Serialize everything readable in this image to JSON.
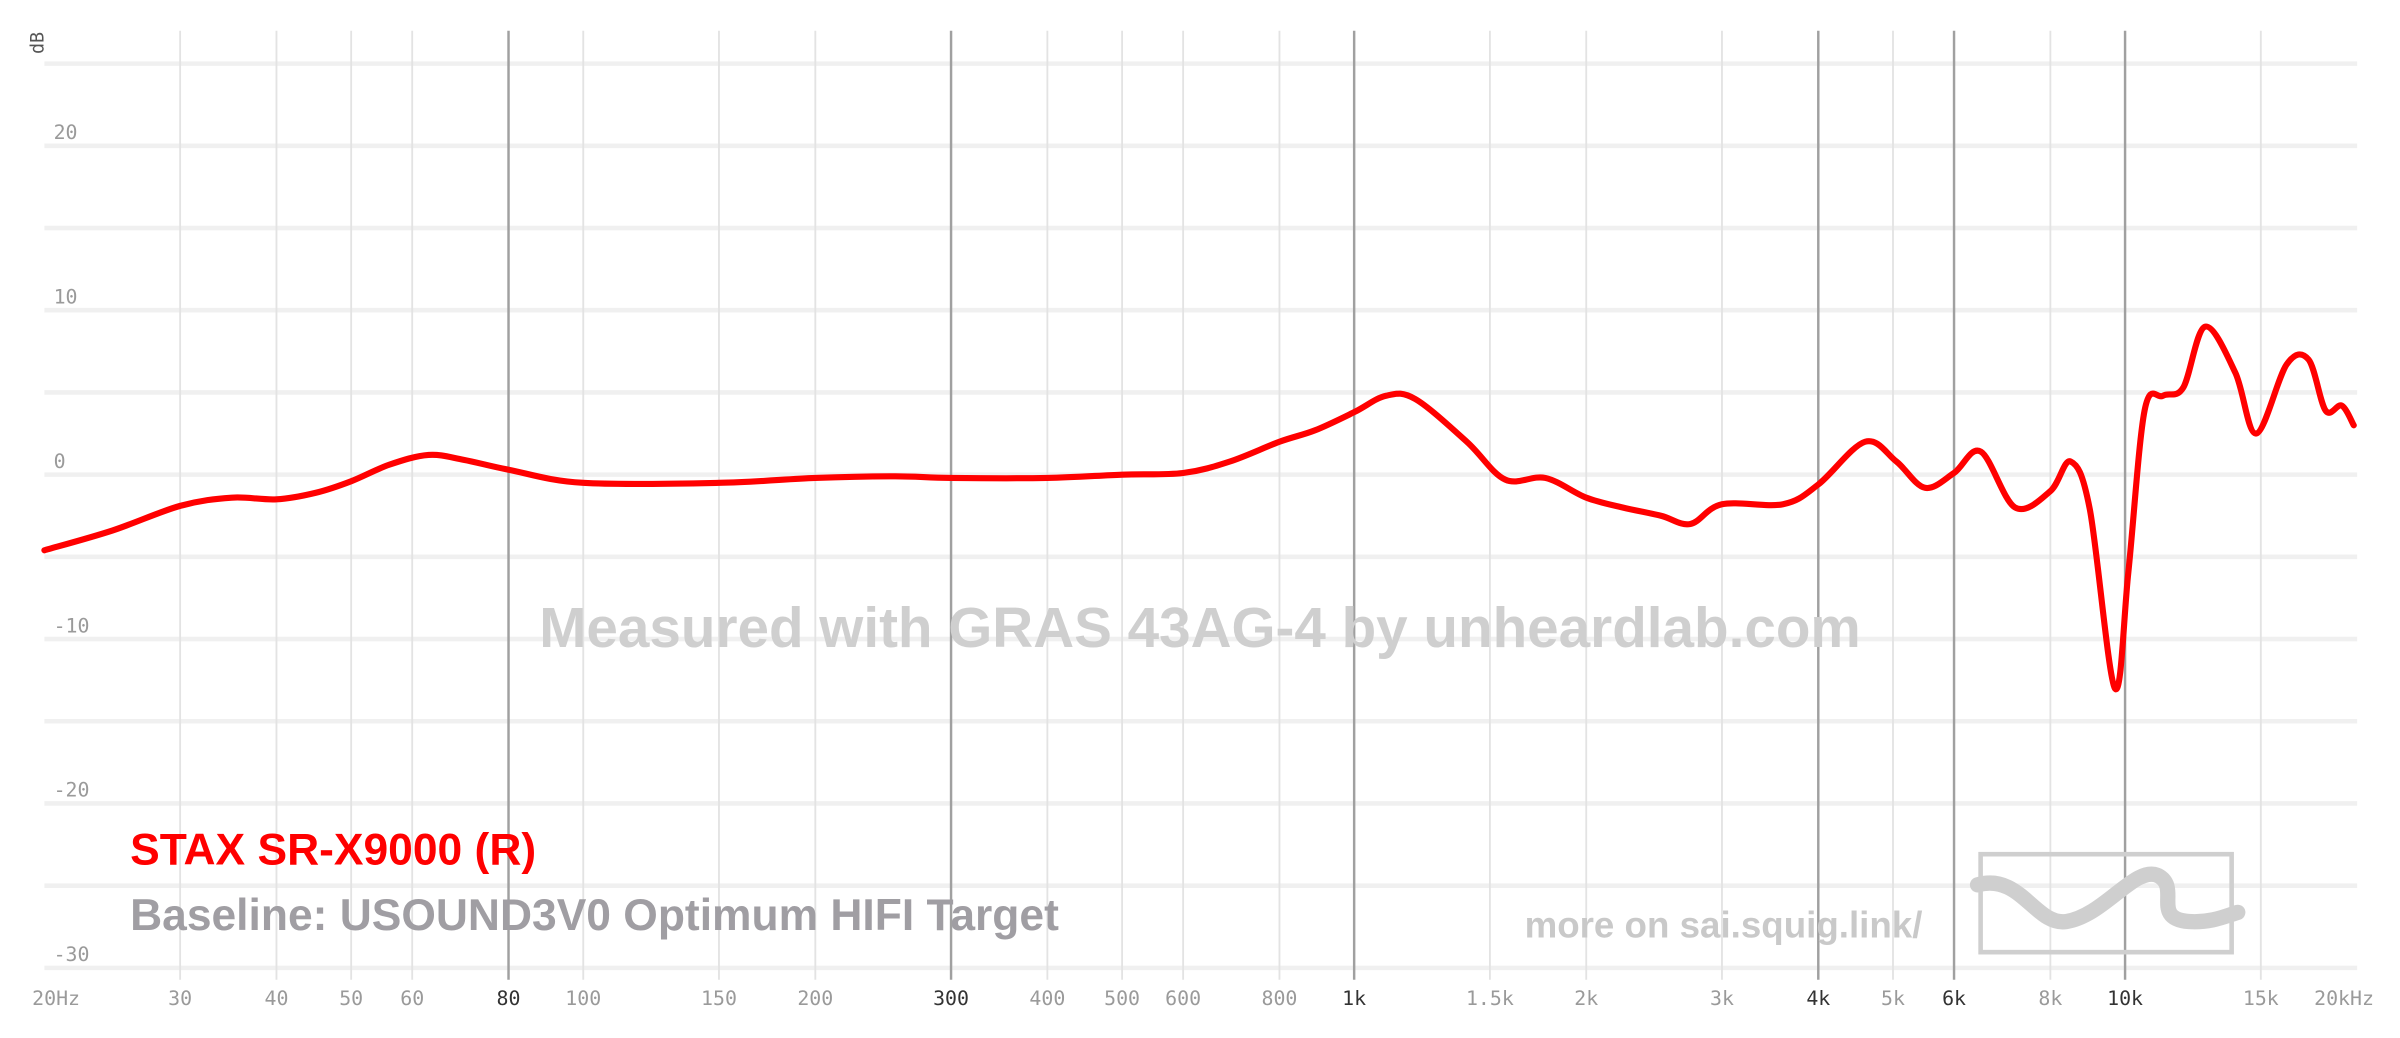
{
  "chart_data": {
    "type": "line",
    "y_label": "dB",
    "watermark": "Measured with GRAS 43AG-4 by unheardlab.com",
    "baseline": "Baseline: USOUND3V0 Optimum HIFI Target",
    "footer": "more on sai.squig.link/",
    "log_x": true,
    "xlim": [
      20,
      20000
    ],
    "ylim": [
      -31,
      27
    ],
    "xticks": [
      {
        "value": 20,
        "label": "20Hz"
      },
      30,
      40,
      50,
      60,
      80,
      100,
      150,
      200,
      300,
      400,
      500,
      600,
      800,
      {
        "value": 1000,
        "label": "1k"
      },
      {
        "value": 1500,
        "label": "1.5k"
      },
      {
        "value": 2000,
        "label": "2k"
      },
      {
        "value": 3000,
        "label": "3k"
      },
      {
        "value": 4000,
        "label": "4k"
      },
      {
        "value": 5000,
        "label": "5k"
      },
      {
        "value": 6000,
        "label": "6k"
      },
      {
        "value": 8000,
        "label": "8k"
      },
      {
        "value": 10000,
        "label": "10k"
      },
      {
        "value": 15000,
        "label": "15k"
      },
      {
        "value": 20000,
        "label": "20kHz"
      }
    ],
    "xticks_strong": [
      80,
      300,
      1000,
      4000,
      6000,
      10000
    ],
    "yticks": [
      20,
      10,
      0,
      -10,
      -20,
      -30
    ],
    "y_minor_ticks": [
      25,
      15,
      5,
      -5,
      -15,
      -25
    ],
    "x": [
      20,
      24.5,
      30,
      35,
      40,
      45,
      50,
      56,
      63,
      70,
      80,
      100,
      150,
      200,
      254,
      300,
      400,
      500,
      600,
      690,
      800,
      890,
      1000,
      1100,
      1200,
      1400,
      1570,
      1770,
      2000,
      2230,
      2500,
      2730,
      3000,
      3600,
      4000,
      4600,
      5050,
      5500,
      6000,
      6500,
      7200,
      8000,
      8500,
      9000,
      9700,
      10100,
      10600,
      11200,
      11900,
      12700,
      13900,
      14800,
      16200,
      17300,
      18200,
      19100,
      19800
    ],
    "series": [
      {
        "name": "STAX SR-X9000 (R)",
        "color": "#ff0000",
        "values": [
          -4.6,
          -3.4,
          -1.9,
          -1.4,
          -1.5,
          -1.1,
          -0.4,
          0.6,
          1.2,
          0.9,
          0.3,
          -0.5,
          -0.5,
          -0.2,
          -0.1,
          -0.2,
          -0.2,
          0,
          0.1,
          0.8,
          2.0,
          2.7,
          3.8,
          4.8,
          4.6,
          2.0,
          -0.3,
          -0.2,
          -1.4,
          -2.0,
          -2.5,
          -3.0,
          -1.8,
          -1.8,
          -0.6,
          2.0,
          0.8,
          -0.8,
          0.1,
          1.4,
          -2.0,
          -1.0,
          0.8,
          -2.1,
          -13.0,
          -5.9,
          3.9,
          4.8,
          5.3,
          9.0,
          6.2,
          2.5,
          6.7,
          7.0,
          3.9,
          4.2,
          3.0
        ]
      }
    ]
  }
}
